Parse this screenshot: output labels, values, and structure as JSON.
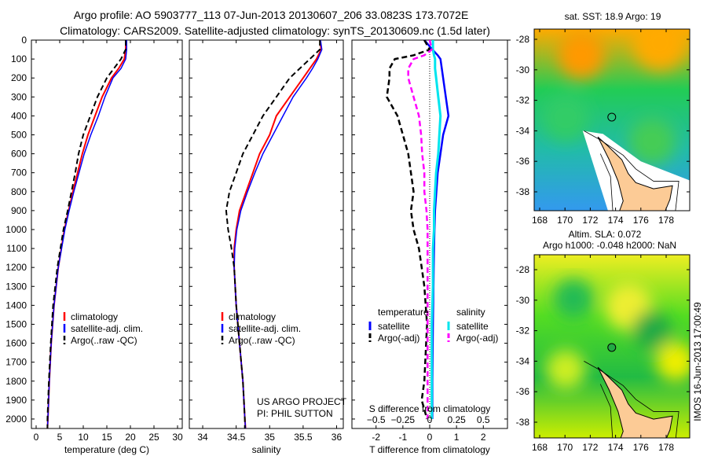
{
  "title": {
    "line1": "Argo profile: AO 5903777_113 07-Jun-2013 20130607_206 33.0823S 173.7072E",
    "line2": "Climatology: CARS2009. Satellite-adjusted climatology: synTS_20130609.nc (1.5d later)"
  },
  "colors": {
    "climatology": "#ff0000",
    "satellite": "#0000ff",
    "argo": "#000000",
    "sal_satellite": "#00e5ee",
    "sal_argo": "#ff00ff"
  },
  "chart_data": [
    {
      "type": "line",
      "name": "temperature-profile",
      "xlabel": "temperature (deg C)",
      "xlim": [
        -1,
        31
      ],
      "ylim": [
        2050,
        0
      ],
      "xticks": [
        0,
        5,
        10,
        15,
        20,
        25,
        30
      ],
      "yticks": [
        0,
        100,
        200,
        300,
        400,
        500,
        600,
        700,
        800,
        900,
        1000,
        1100,
        1200,
        1300,
        1400,
        1500,
        1600,
        1700,
        1800,
        1900,
        2000
      ],
      "legend": [
        "climatology",
        "satellite-adj. clim.",
        "Argo(..raw -QC)"
      ],
      "depth": [
        0,
        50,
        100,
        150,
        200,
        300,
        400,
        500,
        600,
        700,
        800,
        900,
        1000,
        1200,
        1400,
        1600,
        1800,
        2000,
        2050
      ],
      "series": [
        {
          "name": "climatology",
          "values": [
            19,
            19,
            18.7,
            17.5,
            16,
            14,
            12.5,
            11,
            9.8,
            8.8,
            7.8,
            6.9,
            6,
            4.7,
            3.8,
            3.2,
            2.8,
            2.5,
            2.4
          ]
        },
        {
          "name": "satellite-adj. clim.",
          "values": [
            19.2,
            19.2,
            19,
            18,
            16.3,
            14.6,
            13.2,
            11.6,
            10.2,
            9.1,
            8,
            7,
            6.1,
            4.7,
            3.8,
            3.2,
            2.8,
            2.5,
            2.4
          ]
        },
        {
          "name": "Argo(..raw -QC)",
          "values": [
            19,
            19,
            18,
            16.5,
            15,
            13,
            11.5,
            10,
            9,
            8.3,
            7.5,
            6.7,
            5.8,
            4.5,
            3.6,
            3.1,
            2.7,
            2.4,
            2.4
          ]
        }
      ]
    },
    {
      "type": "line",
      "name": "salinity-profile",
      "xlabel": "salinity",
      "xlim": [
        33.8,
        36.1
      ],
      "ylim": [
        2050,
        0
      ],
      "xticks": [
        34,
        34.5,
        35,
        35.5,
        36
      ],
      "legend": [
        "climatology",
        "satellite-adj. clim.",
        "Argo(..raw -QC)"
      ],
      "annotation": [
        "US ARGO PROJECT",
        "PI: PHIL SUTTON"
      ],
      "depth": [
        0,
        50,
        100,
        150,
        200,
        300,
        400,
        500,
        600,
        700,
        800,
        900,
        1000,
        1100,
        1200,
        1400,
        1600,
        1800,
        2000,
        2050
      ],
      "series": [
        {
          "name": "climatology",
          "values": [
            35.75,
            35.77,
            35.7,
            35.6,
            35.5,
            35.3,
            35.1,
            35.0,
            34.85,
            34.75,
            34.65,
            34.55,
            34.5,
            34.47,
            34.47,
            34.5,
            34.55,
            34.6,
            34.63,
            34.64
          ]
        },
        {
          "name": "satellite-adj. clim.",
          "values": [
            35.76,
            35.78,
            35.72,
            35.64,
            35.55,
            35.35,
            35.2,
            35.05,
            34.9,
            34.78,
            34.67,
            34.57,
            34.51,
            34.48,
            34.47,
            34.5,
            34.55,
            34.6,
            34.63,
            34.64
          ]
        },
        {
          "name": "Argo(..raw -QC)",
          "values": [
            35.75,
            35.75,
            35.6,
            35.45,
            35.3,
            35.1,
            34.9,
            34.75,
            34.6,
            34.5,
            34.4,
            34.35,
            34.38,
            34.43,
            34.47,
            34.5,
            34.55,
            34.6,
            34.63,
            34.63
          ]
        }
      ]
    },
    {
      "type": "line",
      "name": "difference-profile",
      "xlabel": "T difference from climatology",
      "x2label": "S difference from climatology",
      "xlim": [
        -2.9,
        2.9
      ],
      "x2lim": [
        -0.725,
        0.725
      ],
      "ylim": [
        2050,
        0
      ],
      "xticks": [
        -2,
        -1,
        0,
        1,
        2
      ],
      "x2ticks": [
        "-0.5",
        "-0.25",
        "0",
        "0.25",
        "0.5"
      ],
      "legend_titles": [
        "temperature",
        "salinity"
      ],
      "legend": [
        "satellite",
        "Argo(-adj)",
        "satellite",
        "Argo(-adj)"
      ],
      "depth": [
        0,
        50,
        80,
        100,
        150,
        200,
        300,
        400,
        500,
        600,
        700,
        800,
        900,
        1000,
        1100,
        1200,
        1300,
        1500,
        1800,
        1900,
        2000
      ],
      "series": [
        {
          "name": "temperature satellite",
          "units": "T",
          "values": [
            -0.2,
            0.1,
            0.3,
            0.4,
            0.45,
            0.5,
            0.6,
            0.7,
            0.5,
            0.4,
            0.3,
            0.25,
            0.2,
            0.18,
            0.16,
            0.15,
            0.14,
            0.12,
            0.1,
            0.1,
            0.1
          ]
        },
        {
          "name": "temperature Argo(-adj)",
          "units": "T",
          "values": [
            -0.2,
            0,
            -0.6,
            -1.3,
            -1.5,
            -1.5,
            -1.6,
            -1.2,
            -1,
            -0.8,
            -0.7,
            -0.6,
            -0.7,
            -0.6,
            -0.4,
            -0.3,
            -0.2,
            -0.1,
            -0.2,
            -0.3,
            -0.1
          ]
        },
        {
          "name": "salinity satellite",
          "units": "S",
          "values": [
            0.03,
            0.03,
            0.04,
            0.05,
            0.05,
            0.06,
            0.08,
            0.1,
            0.09,
            0.08,
            0.06,
            0.05,
            0.04,
            0.04,
            0.03,
            0.03,
            0.03,
            0.02,
            0.02,
            0.02,
            0.02
          ]
        },
        {
          "name": "salinity Argo(-adj)",
          "units": "S",
          "values": [
            0,
            0.02,
            -0.05,
            -0.15,
            -0.2,
            -0.2,
            -0.15,
            -0.1,
            -0.08,
            -0.07,
            -0.05,
            -0.05,
            -0.03,
            -0.02,
            -0.02,
            -0.02,
            -0.02,
            -0.02,
            -0.02,
            -0.02,
            -0.02
          ]
        }
      ]
    }
  ],
  "maps": [
    {
      "title": "sat. SST: 18.9 Argo: 19",
      "xticks": [
        "168",
        "170",
        "172",
        "174",
        "176",
        "178"
      ],
      "yticks": [
        "-28",
        "-30",
        "-32",
        "-34",
        "-36",
        "-38"
      ],
      "float_lon": 173.7,
      "float_lat": -33.1
    },
    {
      "title1": "Altim. SLA: 0.072",
      "title2": "Argo h1000: -0.048 h2000: NaN",
      "xticks": [
        "168",
        "170",
        "172",
        "174",
        "176",
        "178"
      ],
      "yticks": [
        "-28",
        "-30",
        "-32",
        "-34",
        "-36",
        "-38"
      ],
      "float_lon": 173.7,
      "float_lat": -33.1
    }
  ],
  "footer": "IMOS 16-Jun-2013 17:00:49"
}
